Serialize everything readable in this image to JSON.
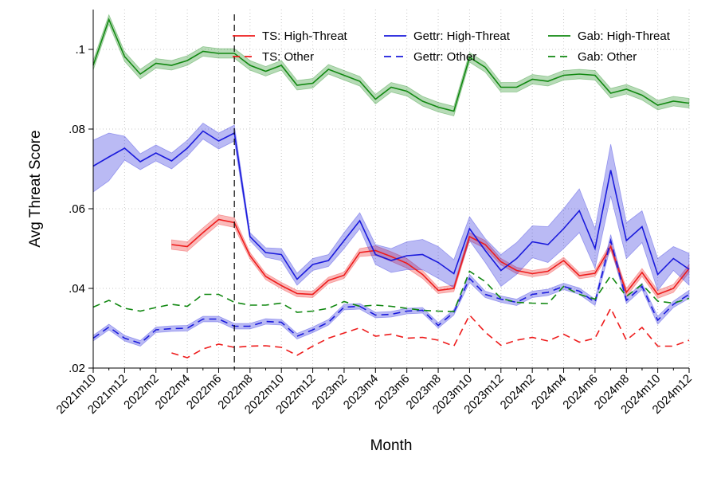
{
  "chart_data": {
    "type": "line",
    "xlabel": "Month",
    "ylabel": "Avg Threat Score",
    "ylim": [
      0.02,
      0.11
    ],
    "yticks": [
      0.02,
      0.04,
      0.06,
      0.08,
      0.1
    ],
    "ytick_labels": [
      ".02",
      ".04",
      ".06",
      ".08",
      ".1"
    ],
    "x": [
      "2021m10",
      "2021m11",
      "2021m12",
      "2022m1",
      "2022m2",
      "2022m3",
      "2022m4",
      "2022m5",
      "2022m6",
      "2022m7",
      "2022m8",
      "2022m9",
      "2022m10",
      "2022m11",
      "2022m12",
      "2023m1",
      "2023m2",
      "2023m3",
      "2023m4",
      "2023m5",
      "2023m6",
      "2023m7",
      "2023m8",
      "2023m9",
      "2023m10",
      "2023m11",
      "2023m12",
      "2024m1",
      "2024m2",
      "2024m3",
      "2024m4",
      "2024m5",
      "2024m6",
      "2024m7",
      "2024m8",
      "2024m9",
      "2024m10",
      "2024m11",
      "2024m12"
    ],
    "xtick_labels": [
      "2021m10",
      "2021m12",
      "2022m2",
      "2022m4",
      "2022m6",
      "2022m8",
      "2022m10",
      "2022m12",
      "2023m2",
      "2023m4",
      "2023m6",
      "2023m8",
      "2023m10",
      "2023m12",
      "2024m2",
      "2024m4",
      "2024m6",
      "2024m8",
      "2024m10",
      "2024m12"
    ],
    "event_line_x": "2022m7",
    "grid": true,
    "legend_position": "top",
    "series": [
      {
        "name": "TS: High-Threat",
        "color": "#ee1c1c",
        "dash": "solid",
        "ci": true,
        "values": [
          null,
          null,
          null,
          null,
          null,
          0.051,
          0.0505,
          0.054,
          0.0573,
          0.0565,
          0.0482,
          0.043,
          0.0407,
          0.0387,
          0.0385,
          0.042,
          0.0433,
          0.049,
          0.0495,
          0.048,
          0.0463,
          0.0435,
          0.0395,
          0.04,
          0.053,
          0.051,
          0.0467,
          0.0445,
          0.0437,
          0.0443,
          0.047,
          0.0432,
          0.0438,
          0.0505,
          0.039,
          0.044,
          0.0385,
          0.04,
          0.045
        ],
        "band": [
          0,
          0,
          0,
          0,
          0,
          0.0012,
          0.0012,
          0.0012,
          0.0012,
          0.0012,
          0.0008,
          0.0008,
          0.0008,
          0.0008,
          0.0008,
          0.0008,
          0.0008,
          0.001,
          0.0012,
          0.0012,
          0.0012,
          0.001,
          0.0008,
          0.0008,
          0.001,
          0.001,
          0.0008,
          0.0008,
          0.0008,
          0.0008,
          0.0008,
          0.0008,
          0.0008,
          0.001,
          0.001,
          0.001,
          0.001,
          0.001,
          0.001
        ]
      },
      {
        "name": "TS: Other",
        "color": "#ee1c1c",
        "dash": "dash",
        "ci": false,
        "values": [
          null,
          null,
          null,
          null,
          null,
          0.0238,
          0.0226,
          0.0248,
          0.026,
          0.0252,
          0.0255,
          0.0256,
          0.0252,
          0.0232,
          0.0255,
          0.0275,
          0.0288,
          0.0301,
          0.028,
          0.0285,
          0.0275,
          0.0277,
          0.027,
          0.0255,
          0.0333,
          0.029,
          0.0257,
          0.027,
          0.0277,
          0.0268,
          0.0285,
          0.0265,
          0.0275,
          0.035,
          0.027,
          0.0302,
          0.0255,
          0.0255,
          0.027
        ]
      },
      {
        "name": "Gettr: High-Threat",
        "color": "#1a1adc",
        "dash": "solid",
        "ci": true,
        "values": [
          0.0707,
          0.073,
          0.0752,
          0.0718,
          0.074,
          0.072,
          0.0752,
          0.0795,
          0.077,
          0.079,
          0.053,
          0.049,
          0.0485,
          0.0423,
          0.046,
          0.047,
          0.052,
          0.057,
          0.0485,
          0.047,
          0.0482,
          0.0485,
          0.0465,
          0.0437,
          0.055,
          0.0495,
          0.0445,
          0.0475,
          0.0517,
          0.051,
          0.055,
          0.0595,
          0.05,
          0.0697,
          0.052,
          0.0555,
          0.0435,
          0.0475,
          0.0448
        ],
        "band": [
          0.0065,
          0.006,
          0.003,
          0.002,
          0.002,
          0.002,
          0.002,
          0.002,
          0.002,
          0.002,
          0.001,
          0.0012,
          0.0015,
          0.0015,
          0.0015,
          0.0015,
          0.002,
          0.002,
          0.0025,
          0.003,
          0.0035,
          0.0038,
          0.004,
          0.0035,
          0.003,
          0.003,
          0.004,
          0.004,
          0.004,
          0.0045,
          0.005,
          0.0055,
          0.005,
          0.0065,
          0.0045,
          0.004,
          0.004,
          0.003,
          0.004
        ]
      },
      {
        "name": "Gettr: Other",
        "color": "#1a1adc",
        "dash": "dash",
        "ci": true,
        "values": [
          0.0275,
          0.0303,
          0.0275,
          0.0262,
          0.0296,
          0.0299,
          0.03,
          0.0323,
          0.0323,
          0.0305,
          0.0305,
          0.0317,
          0.0315,
          0.028,
          0.0296,
          0.0315,
          0.0353,
          0.0355,
          0.0333,
          0.0335,
          0.0343,
          0.0345,
          0.0307,
          0.034,
          0.0425,
          0.0385,
          0.0373,
          0.0365,
          0.0385,
          0.039,
          0.0405,
          0.0393,
          0.0365,
          0.052,
          0.037,
          0.0405,
          0.032,
          0.036,
          0.0385
        ],
        "band": [
          0.0007,
          0.0007,
          0.0007,
          0.0007,
          0.0007,
          0.0007,
          0.0007,
          0.0007,
          0.0007,
          0.0007,
          0.0007,
          0.0007,
          0.0007,
          0.0007,
          0.0007,
          0.0007,
          0.0007,
          0.0007,
          0.0007,
          0.0007,
          0.0007,
          0.0007,
          0.0007,
          0.0007,
          0.001,
          0.0008,
          0.0008,
          0.0008,
          0.0008,
          0.0008,
          0.0008,
          0.0008,
          0.0008,
          0.0015,
          0.0008,
          0.0008,
          0.001,
          0.0008,
          0.001
        ]
      },
      {
        "name": "Gab: High-Threat",
        "color": "#118811",
        "dash": "solid",
        "ci": true,
        "values": [
          0.096,
          0.1075,
          0.0982,
          0.0938,
          0.0965,
          0.096,
          0.0972,
          0.0995,
          0.099,
          0.099,
          0.096,
          0.0945,
          0.096,
          0.091,
          0.0915,
          0.095,
          0.0935,
          0.092,
          0.0875,
          0.0905,
          0.0895,
          0.087,
          0.0855,
          0.0845,
          0.098,
          0.0955,
          0.0905,
          0.0905,
          0.0925,
          0.092,
          0.0935,
          0.0938,
          0.0935,
          0.089,
          0.09,
          0.0885,
          0.086,
          0.087,
          0.0865
        ],
        "band": [
          0.0012,
          0.0012,
          0.0012,
          0.0012,
          0.0012,
          0.0012,
          0.0012,
          0.0012,
          0.0012,
          0.0012,
          0.0012,
          0.0012,
          0.0012,
          0.0012,
          0.0012,
          0.0012,
          0.0012,
          0.0012,
          0.0012,
          0.0012,
          0.0012,
          0.0012,
          0.0012,
          0.0012,
          0.0012,
          0.0012,
          0.0012,
          0.0012,
          0.0012,
          0.0012,
          0.0012,
          0.0012,
          0.0012,
          0.0012,
          0.0012,
          0.0012,
          0.0012,
          0.0012,
          0.0012
        ]
      },
      {
        "name": "Gab: Other",
        "color": "#118811",
        "dash": "dash",
        "ci": false,
        "values": [
          0.0353,
          0.037,
          0.035,
          0.0343,
          0.0352,
          0.036,
          0.0355,
          0.0385,
          0.0385,
          0.0365,
          0.0358,
          0.0358,
          0.0363,
          0.034,
          0.0343,
          0.035,
          0.0367,
          0.0355,
          0.0358,
          0.0355,
          0.035,
          0.0345,
          0.0343,
          0.0342,
          0.0443,
          0.0417,
          0.0375,
          0.0365,
          0.0363,
          0.0362,
          0.0405,
          0.0385,
          0.0373,
          0.0432,
          0.038,
          0.041,
          0.0368,
          0.0363,
          0.0375
        ]
      }
    ]
  }
}
